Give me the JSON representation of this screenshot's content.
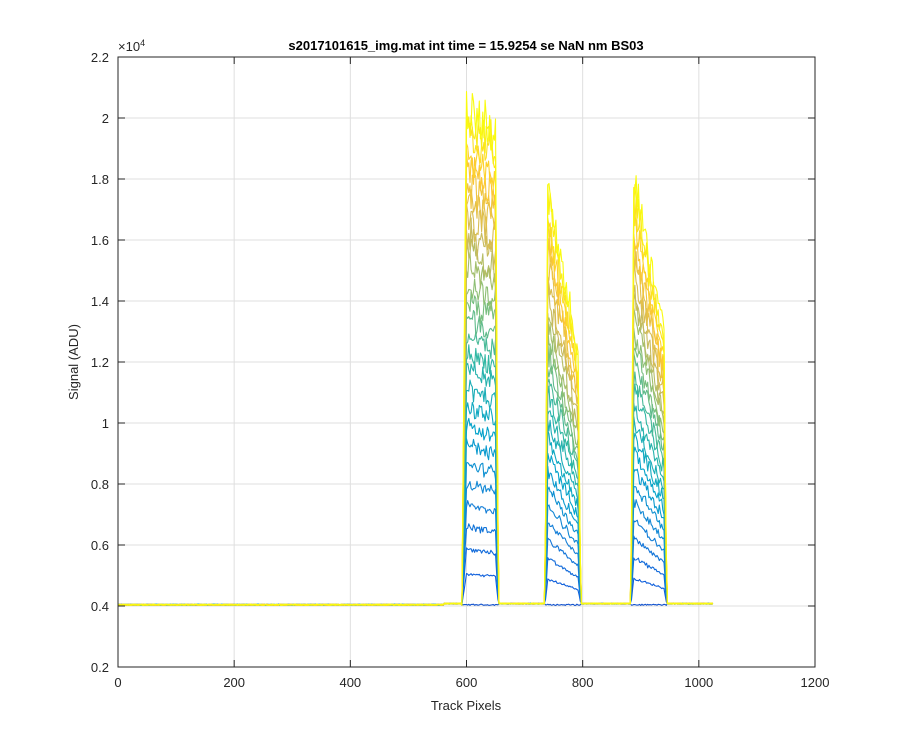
{
  "chart_data": {
    "type": "line",
    "title": "s2017101615_img.mat int time = 15.9254 se  NaN nm BS03",
    "xlabel": "Track Pixels",
    "ylabel": "Signal (ADU)",
    "xlim": [
      0,
      1200
    ],
    "ylim": [
      0.2,
      2.2
    ],
    "y_exponent_label": "×10",
    "y_exponent_power": "4",
    "x_ticks": [
      0,
      200,
      400,
      600,
      800,
      1000,
      1200
    ],
    "x_tick_labels": [
      "0",
      "200",
      "400",
      "600",
      "800",
      "1000",
      "1200"
    ],
    "y_ticks": [
      0.2,
      0.4,
      0.6,
      0.8,
      1,
      1.2,
      1.4,
      1.6,
      1.8,
      2,
      2.2
    ],
    "y_tick_labels": [
      "0.2",
      "0.4",
      "0.6",
      "0.8",
      "1",
      "1.2",
      "1.4",
      "1.6",
      "1.8",
      "2",
      "2.2"
    ],
    "grid": true,
    "baseline": 0.404,
    "x_end": 1024,
    "colormap": [
      "#352a87",
      "#0f5cdd",
      "#1481d6",
      "#06a4ca",
      "#2eb7a4",
      "#87bf77",
      "#d1bb59",
      "#fec832",
      "#f9fb0e"
    ],
    "peaks": [
      {
        "x_start": 592,
        "x_rise": 600,
        "x_fall": 650,
        "x_end": 655,
        "top_left": 2.12,
        "top_right": 2.02
      },
      {
        "x_start": 735,
        "x_rise": 740,
        "x_fall": 792,
        "x_end": 797,
        "top_left": 1.84,
        "top_right": 1.26
      },
      {
        "x_start": 883,
        "x_rise": 888,
        "x_fall": 940,
        "x_end": 945,
        "top_left": 1.87,
        "top_right": 1.33
      }
    ],
    "layers": 28
  }
}
